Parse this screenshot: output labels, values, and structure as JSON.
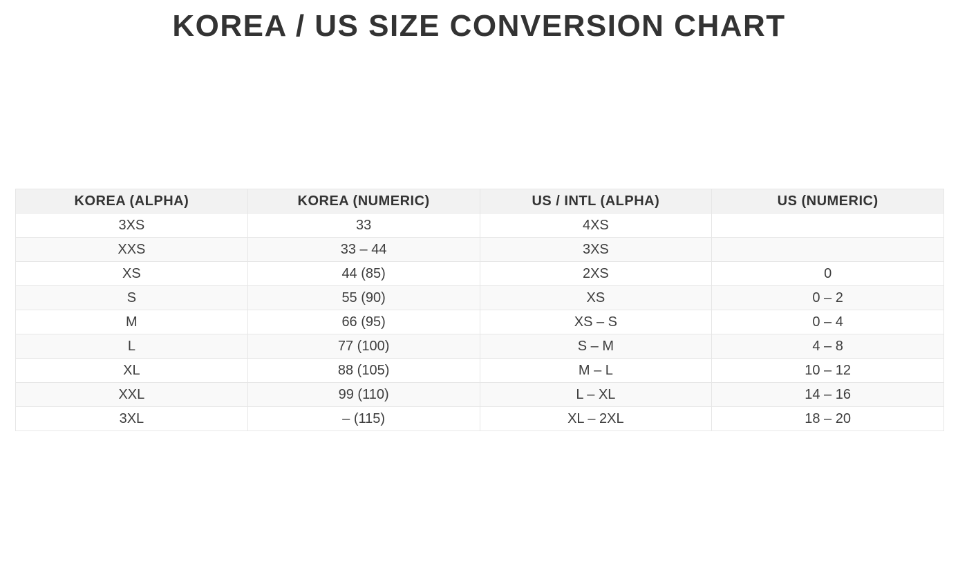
{
  "title": "KOREA / US SIZE CONVERSION CHART",
  "table": {
    "columns": [
      "KOREA (ALPHA)",
      "KOREA (NUMERIC)",
      "US / INTL (ALPHA)",
      "US (NUMERIC)"
    ],
    "rows": [
      [
        "3XS",
        "33",
        "4XS",
        ""
      ],
      [
        "XXS",
        "33 – 44",
        "3XS",
        ""
      ],
      [
        "XS",
        "44 (85)",
        "2XS",
        "0"
      ],
      [
        "S",
        "55 (90)",
        "XS",
        "0 – 2"
      ],
      [
        "M",
        "66 (95)",
        "XS – S",
        "0 – 4"
      ],
      [
        "L",
        "77 (100)",
        "S – M",
        "4 – 8"
      ],
      [
        "XL",
        "88 (105)",
        "M – L",
        "10 – 12"
      ],
      [
        "XXL",
        "99 (110)",
        "L – XL",
        "14 – 16"
      ],
      [
        "3XL",
        "– (115)",
        "XL – 2XL",
        "18 – 20"
      ]
    ]
  },
  "colors": {
    "title_text": "#333333",
    "header_background": "#f2f2f2",
    "row_stripe": "#f9f9f9",
    "border": "#e6e6e6",
    "cell_text": "#3d3d3d"
  },
  "chart_data": {
    "type": "table",
    "title": "KOREA / US SIZE CONVERSION CHART",
    "columns": [
      "KOREA (ALPHA)",
      "KOREA (NUMERIC)",
      "US / INTL (ALPHA)",
      "US (NUMERIC)"
    ],
    "rows": [
      [
        "3XS",
        "33",
        "4XS",
        ""
      ],
      [
        "XXS",
        "33 – 44",
        "3XS",
        ""
      ],
      [
        "XS",
        "44 (85)",
        "2XS",
        "0"
      ],
      [
        "S",
        "55 (90)",
        "XS",
        "0 – 2"
      ],
      [
        "M",
        "66 (95)",
        "XS – S",
        "0 – 4"
      ],
      [
        "L",
        "77 (100)",
        "S – M",
        "4 – 8"
      ],
      [
        "XL",
        "88 (105)",
        "M – L",
        "10 – 12"
      ],
      [
        "XXL",
        "99 (110)",
        "L – XL",
        "14 – 16"
      ],
      [
        "3XL",
        "– (115)",
        "XL – 2XL",
        "18 – 20"
      ]
    ],
    "layout_hints": {
      "header_shaded": true,
      "zebra_striping": true,
      "cell_alignment": "center",
      "equal_column_widths": true
    }
  }
}
